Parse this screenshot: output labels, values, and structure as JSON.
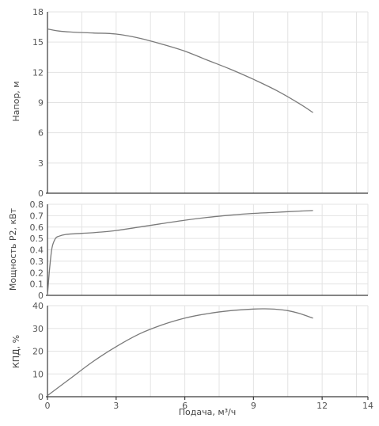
{
  "chart_data": [
    {
      "type": "line",
      "panel": "head",
      "ylabel": "Напор, м",
      "xlim": [
        0,
        14
      ],
      "ylim": [
        0,
        18
      ],
      "yticks": [
        0,
        3,
        6,
        9,
        12,
        15,
        18
      ],
      "grid": true,
      "series": [
        {
          "x": [
            0,
            0.5,
            1,
            2,
            3,
            4,
            5,
            6,
            7,
            8,
            9,
            10,
            11,
            11.6
          ],
          "y": [
            16.3,
            16.1,
            16.0,
            15.9,
            15.8,
            15.4,
            14.8,
            14.1,
            13.2,
            12.3,
            11.3,
            10.2,
            8.9,
            8.0
          ]
        }
      ]
    },
    {
      "type": "line",
      "panel": "power",
      "ylabel": "Мощность Р2, кВт",
      "xlim": [
        0,
        14
      ],
      "ylim": [
        0,
        0.8
      ],
      "yticks": [
        0,
        0.1,
        0.2,
        0.3,
        0.4,
        0.5,
        0.6,
        0.7,
        0.8
      ],
      "grid": true,
      "series": [
        {
          "x": [
            0,
            0.1,
            0.2,
            0.35,
            0.5,
            0.8,
            1.5,
            2,
            3,
            4,
            5,
            6,
            7,
            8,
            9,
            10,
            11,
            11.6
          ],
          "y": [
            0.0,
            0.25,
            0.42,
            0.5,
            0.52,
            0.535,
            0.545,
            0.55,
            0.57,
            0.6,
            0.63,
            0.66,
            0.685,
            0.705,
            0.72,
            0.73,
            0.74,
            0.745
          ]
        }
      ]
    },
    {
      "type": "line",
      "panel": "efficiency",
      "ylabel": "КПД, %",
      "xlabel": "Подача, м³/ч",
      "xlim": [
        0,
        14
      ],
      "ylim": [
        0,
        40
      ],
      "yticks": [
        0,
        10,
        20,
        30,
        40
      ],
      "xticks": [
        0,
        3,
        6,
        9,
        12,
        14
      ],
      "grid": true,
      "series": [
        {
          "x": [
            0,
            1,
            2,
            3,
            4,
            5,
            6,
            7,
            8,
            9,
            9.5,
            10,
            10.5,
            11,
            11.6
          ],
          "y": [
            0.5,
            8,
            15.5,
            22,
            27.5,
            31.5,
            34.5,
            36.5,
            37.8,
            38.5,
            38.6,
            38.4,
            37.8,
            36.6,
            34.5
          ]
        }
      ]
    }
  ]
}
